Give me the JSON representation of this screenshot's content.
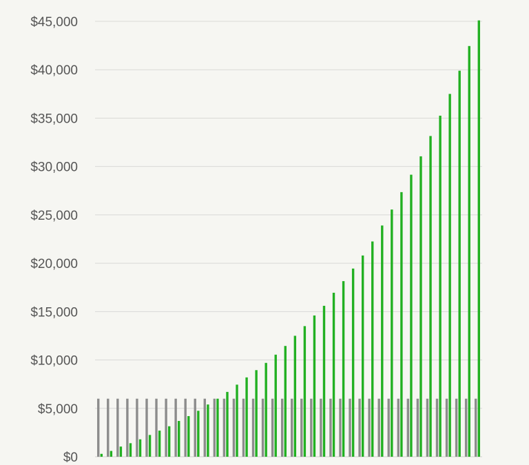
{
  "chart_data": {
    "type": "bar",
    "title": "",
    "xlabel": "",
    "ylabel": "",
    "ylim": [
      0,
      45000
    ],
    "grid": true,
    "legend": "none",
    "yticks": [
      "$0",
      "$5,000",
      "$10,000",
      "$15,000",
      "$20,000",
      "$25,000",
      "$30,000",
      "$35,000",
      "$40,000",
      "$45,000"
    ],
    "series": [
      {
        "color": "#8c8c8c",
        "values": [
          6000,
          6000,
          6000,
          6000,
          6000,
          6000,
          6000,
          6000,
          6000,
          6000,
          6000,
          6000,
          6000,
          6000,
          6000,
          6000,
          6000,
          6000,
          6000,
          6000,
          6000,
          6000,
          6000,
          6000,
          6000,
          6000,
          6000,
          6000,
          6000,
          6000,
          6000,
          6000,
          6000,
          6000,
          6000,
          6000,
          6000,
          6000,
          6000,
          6000
        ]
      },
      {
        "color": "#22b022",
        "values": [
          300,
          600,
          1050,
          1400,
          1800,
          2250,
          2700,
          3150,
          3700,
          4200,
          4750,
          5400,
          6000,
          6700,
          7450,
          8200,
          8950,
          9700,
          10550,
          11450,
          12500,
          13500,
          14600,
          15600,
          16950,
          18150,
          19450,
          20800,
          22250,
          23900,
          25550,
          27350,
          29150,
          31050,
          33150,
          35250,
          37500,
          39900,
          42450,
          45100
        ]
      }
    ]
  }
}
